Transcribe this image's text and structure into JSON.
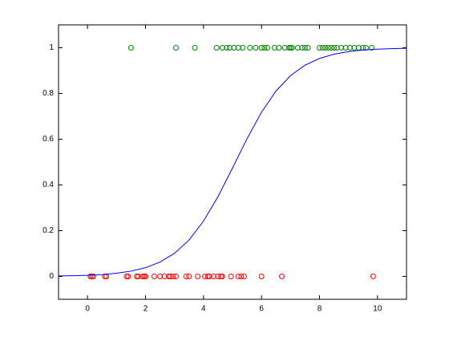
{
  "chart_data": {
    "type": "scatter",
    "xlim": [
      -1,
      11
    ],
    "ylim": [
      -0.1,
      1.1
    ],
    "xticks": [
      0,
      2,
      4,
      6,
      8,
      10
    ],
    "yticks": [
      0,
      0.2,
      0.4,
      0.6,
      0.8,
      1
    ],
    "grid": false,
    "series": [
      {
        "type": "scatter",
        "color": "#ff0000",
        "x": [
          0.1,
          0.15,
          0.2,
          0.6,
          0.65,
          1.35,
          1.4,
          1.7,
          1.75,
          1.9,
          1.95,
          2.0,
          2.3,
          2.5,
          2.65,
          2.8,
          2.85,
          2.95,
          3.05,
          3.4,
          3.5,
          3.8,
          4.05,
          4.15,
          4.2,
          4.35,
          4.5,
          4.6,
          4.65,
          4.95,
          5.2,
          5.3,
          5.4,
          6.0,
          6.7,
          9.85
        ],
        "values": [
          0,
          0,
          0,
          0,
          0,
          0,
          0,
          0,
          0,
          0,
          0,
          0,
          0,
          0,
          0,
          0,
          0,
          0,
          0,
          0,
          0,
          0,
          0,
          0,
          0,
          0,
          0,
          0,
          0,
          0,
          0,
          0,
          0,
          0,
          0,
          0
        ]
      },
      {
        "type": "scatter",
        "color": "#008000",
        "x": [
          1.5,
          3.05,
          3.7,
          4.45,
          4.65,
          4.8,
          4.9,
          5.05,
          5.2,
          5.35,
          5.6,
          5.8,
          6.0,
          6.1,
          6.2,
          6.45,
          6.6,
          6.8,
          6.95,
          7.0,
          7.05,
          7.25,
          7.4,
          7.5,
          7.6,
          8.0,
          8.1,
          8.2,
          8.3,
          8.4,
          8.5,
          8.6,
          8.75,
          8.9,
          9.05,
          9.2,
          9.35,
          9.5,
          9.6,
          9.8
        ],
        "values": [
          1,
          1,
          1,
          1,
          1,
          1,
          1,
          1,
          1,
          1,
          1,
          1,
          1,
          1,
          1,
          1,
          1,
          1,
          1,
          1,
          1,
          1,
          1,
          1,
          1,
          1,
          1,
          1,
          1,
          1,
          1,
          1,
          1,
          1,
          1,
          1,
          1,
          1,
          1,
          1
        ]
      },
      {
        "type": "line",
        "color": "#0000ff",
        "x": [
          -1,
          -0.5,
          0,
          0.5,
          1,
          1.5,
          2,
          2.5,
          3,
          3.5,
          4,
          4.5,
          5,
          5.5,
          6,
          6.5,
          7,
          7.5,
          8,
          8.5,
          9,
          9.5,
          10,
          10.5,
          11
        ],
        "values": [
          0.002,
          0.003,
          0.005,
          0.008,
          0.014,
          0.023,
          0.038,
          0.063,
          0.101,
          0.159,
          0.242,
          0.349,
          0.474,
          0.602,
          0.718,
          0.811,
          0.878,
          0.924,
          0.953,
          0.972,
          0.983,
          0.99,
          0.994,
          0.996,
          0.998
        ]
      }
    ]
  }
}
